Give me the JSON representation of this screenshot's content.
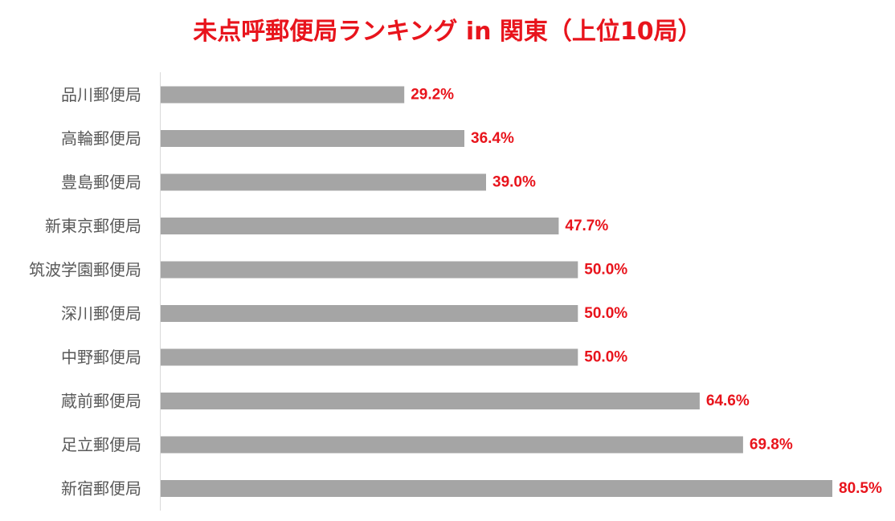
{
  "chart_data": {
    "type": "bar",
    "orientation": "horizontal",
    "title": "未点呼郵便局ランキング in 関東（上位10局）",
    "xlabel": "",
    "ylabel": "",
    "categories": [
      "品川郵便局",
      "高輪郵便局",
      "豊島郵便局",
      "新東京郵便局",
      "筑波学園郵便局",
      "深川郵便局",
      "中野郵便局",
      "蔵前郵便局",
      "足立郵便局",
      "新宿郵便局"
    ],
    "values": [
      29.2,
      36.4,
      39.0,
      47.7,
      50.0,
      50.0,
      50.0,
      64.6,
      69.8,
      80.5
    ],
    "value_labels": [
      "29.2%",
      "36.4%",
      "39.0%",
      "47.7%",
      "50.0%",
      "50.0%",
      "50.0%",
      "64.6%",
      "69.8%",
      "80.5%"
    ],
    "unit": "%",
    "xlim": [
      0,
      80.5
    ],
    "grid": false,
    "legend": "none",
    "colors": {
      "bar": "#a5a5a5",
      "title": "#e8141c",
      "value_label": "#e8141c",
      "category_label": "#595959",
      "axis": "#d9d9d9"
    }
  }
}
